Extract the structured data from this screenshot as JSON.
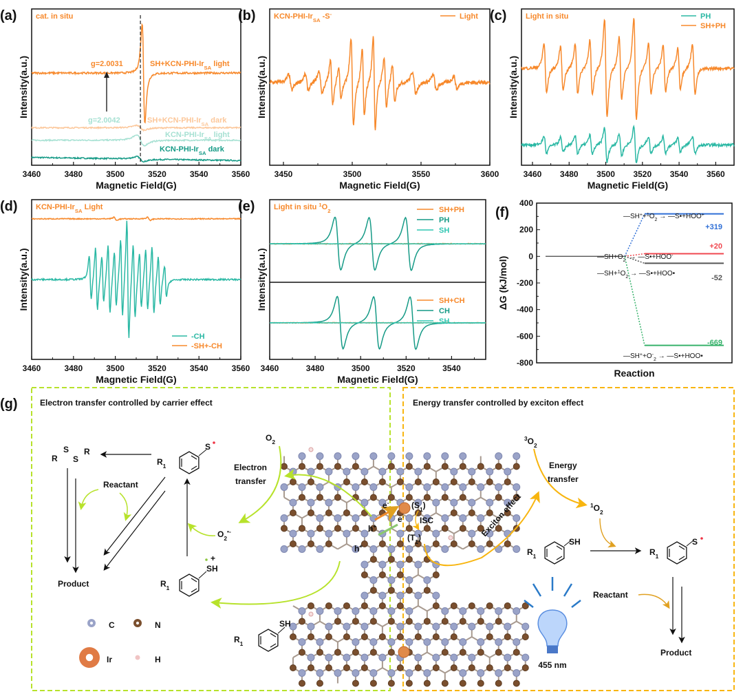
{
  "colors": {
    "orange": "#f7882a",
    "light_orange": "#fcc79a",
    "teal": "#2ab8a4",
    "dark_teal": "#159a86",
    "light_teal": "#a7e1d3",
    "blue": "#2f6fd6",
    "red": "#f0474f",
    "grey": "#555555",
    "green": "#37b26b",
    "lime": "#b7e22b",
    "gold": "#f8b50f",
    "bulb_blue": "#3a78d4"
  },
  "chart_data": [
    {
      "id": "a",
      "panel_label": "(a)",
      "type": "line",
      "title": "cat. in situ",
      "xlabel": "Magnetic Field(G)",
      "ylabel": "Intensity(a.u.)",
      "xlim": [
        3460,
        3560
      ],
      "xticks": [
        3460,
        3480,
        3500,
        3520,
        3540,
        3560
      ],
      "reference_line": 3512,
      "annotations": {
        "g_light": "g=2.0031",
        "g_dark": "g=2.0042"
      },
      "series": [
        {
          "name": {
            "main": "SH+KCN-PHI-Ir",
            "sub": "SA",
            "tail": " light"
          },
          "color": "#f7882a",
          "offset": 5.9,
          "lines": [
            {
              "center": 3513.5,
              "width": 1.1,
              "amp": 3.2
            }
          ]
        },
        {
          "name": {
            "main": "SH+KCN-PHI-Ir",
            "sub": "SA",
            "tail": " dark"
          },
          "color": "#fcc79a",
          "offset": 2.4,
          "lines": [
            {
              "center": 3512,
              "width": 3,
              "amp": 0.15
            }
          ]
        },
        {
          "name": {
            "main": "KCN-PHI-Ir",
            "sub": "SA",
            "tail": " light"
          },
          "color": "#a7e1d3",
          "offset": 1.6,
          "lines": [
            {
              "center": 3512,
              "width": 3,
              "amp": 0.35
            }
          ]
        },
        {
          "name": {
            "main": "KCN-PHI-Ir",
            "sub": "SA",
            "tail": " dark"
          },
          "color": "#159a86",
          "offset": 0.5,
          "lines": [
            {
              "center": 3512,
              "width": 3,
              "amp": 0.15
            }
          ]
        }
      ]
    },
    {
      "id": "b",
      "panel_label": "(b)",
      "type": "line",
      "title": {
        "main": "KCN-PHI-Ir",
        "sub": "SA",
        "tail": "  -S",
        "sup": "-"
      },
      "xlabel": "Magnetic Field(G)",
      "ylabel": "Intensity(a.u.)",
      "xlim": [
        3440,
        3600
      ],
      "xticks": [
        3450,
        3500,
        3550,
        3600
      ],
      "legend": "top-right",
      "series": [
        {
          "name": "Light",
          "color": "#f7882a",
          "offset": 5.3,
          "lines": [
            {
              "center": 3455,
              "width": 2,
              "amp": 0.5
            },
            {
              "center": 3467,
              "width": 2,
              "amp": 0.5
            },
            {
              "center": 3477,
              "width": 2,
              "amp": 0.7
            },
            {
              "center": 3485,
              "width": 1.5,
              "amp": 1.4
            },
            {
              "center": 3491,
              "width": 1.5,
              "amp": 1.0
            },
            {
              "center": 3500,
              "width": 1.5,
              "amp": 2.8
            },
            {
              "center": 3508,
              "width": 1.3,
              "amp": 2.2
            },
            {
              "center": 3516,
              "width": 1.3,
              "amp": 3.0
            },
            {
              "center": 3524,
              "width": 1.5,
              "amp": 1.6
            },
            {
              "center": 3530,
              "width": 1.5,
              "amp": 1.2
            },
            {
              "center": 3545,
              "width": 2,
              "amp": 0.7
            },
            {
              "center": 3560,
              "width": 2,
              "amp": 0.5
            },
            {
              "center": 3575,
              "width": 2,
              "amp": 0.4
            }
          ]
        }
      ]
    },
    {
      "id": "c",
      "panel_label": "(c)",
      "type": "line",
      "title": "Light in situ",
      "xlabel": "Magnetic Field(G)",
      "ylabel": "Intensity(a.u.)",
      "xlim": [
        3454,
        3570
      ],
      "xticks": [
        3460,
        3480,
        3500,
        3520,
        3540,
        3560
      ],
      "legend": "top-right",
      "series": [
        {
          "name": "PH",
          "color": "#2ab8a4",
          "offset": 1.3,
          "scale": 0.35
        },
        {
          "name": "SH+PH",
          "color": "#f7882a",
          "offset": 6.2,
          "scale": 1
        }
      ],
      "lines": [
        {
          "center": 3467,
          "width": 1.2,
          "amp": 1.6
        },
        {
          "center": 3476,
          "width": 1.2,
          "amp": 1.4
        },
        {
          "center": 3484,
          "width": 1.2,
          "amp": 1.6
        },
        {
          "center": 3492,
          "width": 1.2,
          "amp": 1.8
        },
        {
          "center": 3500,
          "width": 1.2,
          "amp": 3.2
        },
        {
          "center": 3508,
          "width": 1.2,
          "amp": 2.0
        },
        {
          "center": 3516,
          "width": 1.2,
          "amp": 3.3
        },
        {
          "center": 3524,
          "width": 1.2,
          "amp": 1.6
        },
        {
          "center": 3532,
          "width": 1.2,
          "amp": 1.5
        },
        {
          "center": 3540,
          "width": 1.2,
          "amp": 1.3
        },
        {
          "center": 3548,
          "width": 1.2,
          "amp": 1.6
        }
      ]
    },
    {
      "id": "d",
      "panel_label": "(d)",
      "type": "line",
      "title": {
        "main": "KCN-PHI-Ir",
        "sub": "SA",
        "tail": "  Light"
      },
      "xlabel": "Magnetic Field(G)",
      "ylabel": "Intensity(a.u.)",
      "xlim": [
        3460,
        3560
      ],
      "xticks": [
        3460,
        3480,
        3500,
        3520,
        3540,
        3560
      ],
      "legend": "bottom-right",
      "series": [
        {
          "name": "-CH",
          "color": "#2ab8a4",
          "offset": 5.0,
          "lines": [
            {
              "center": 3488,
              "width": 0.8,
              "amp": 1.4
            },
            {
              "center": 3491,
              "width": 0.8,
              "amp": 2.0
            },
            {
              "center": 3494,
              "width": 0.8,
              "amp": 1.5
            },
            {
              "center": 3497,
              "width": 0.8,
              "amp": 2.2
            },
            {
              "center": 3500,
              "width": 0.8,
              "amp": 1.8
            },
            {
              "center": 3503,
              "width": 0.8,
              "amp": 2.5
            },
            {
              "center": 3506,
              "width": 0.8,
              "amp": 3.8
            },
            {
              "center": 3509,
              "width": 0.8,
              "amp": 2.4
            },
            {
              "center": 3512,
              "width": 0.8,
              "amp": 1.8
            },
            {
              "center": 3515,
              "width": 0.8,
              "amp": 2.0
            },
            {
              "center": 3518,
              "width": 0.8,
              "amp": 2.2
            },
            {
              "center": 3521,
              "width": 0.8,
              "amp": 1.6
            },
            {
              "center": 3524,
              "width": 0.8,
              "amp": 1.0
            }
          ]
        },
        {
          "name": "-SH+-CH",
          "color": "#f7882a",
          "offset": 8.8,
          "lines": [
            {
              "center": 3500,
              "width": 1,
              "amp": 0.1
            },
            {
              "center": 3516,
              "width": 1,
              "amp": 0.1
            }
          ]
        }
      ]
    },
    {
      "id": "e",
      "panel_label": "(e)",
      "type": "line",
      "title": {
        "main": "Light  in situ ",
        "sup": "1",
        "tail": "O",
        "sub": "2"
      },
      "xlabel": "Magnetic Field(G)",
      "ylabel": "Intensity(a.u.)",
      "xlim": [
        3460,
        3555
      ],
      "xticks": [
        3460,
        3480,
        3500,
        3520,
        3540
      ],
      "legend": "top-right",
      "subplots": [
        {
          "series": [
            {
              "name": "SH+PH",
              "color": "#f7882a",
              "offset": 2.33,
              "lines": []
            },
            {
              "name": "PH",
              "color": "#159a86",
              "offset": 2.33,
              "lines": [
                {
                  "center": 3490,
                  "width": 2.2,
                  "amp": 1.6
                },
                {
                  "center": 3505,
                  "width": 2.2,
                  "amp": 1.6
                },
                {
                  "center": 3521,
                  "width": 2.2,
                  "amp": 1.6
                }
              ]
            },
            {
              "name": "SH",
              "color": "#2fc6b2",
              "offset": 2.33,
              "lines": []
            }
          ]
        },
        {
          "series": [
            {
              "name": "SH+CH",
              "color": "#f7882a",
              "offset": 2.37,
              "lines": []
            },
            {
              "name": "CH",
              "color": "#159a86",
              "offset": 2.37,
              "lines": [
                {
                  "center": 3491,
                  "width": 2.2,
                  "amp": 1.7
                },
                {
                  "center": 3507,
                  "width": 2.2,
                  "amp": 1.7
                },
                {
                  "center": 3523,
                  "width": 2.2,
                  "amp": 1.7
                }
              ]
            },
            {
              "name": "SH",
              "color": "#2fc6b2",
              "offset": 2.37,
              "lines": []
            }
          ]
        }
      ]
    },
    {
      "id": "f",
      "panel_label": "(f)",
      "type": "energy-level",
      "xlabel": "Reaction",
      "ylabel": "ΔG (kJ/mol)",
      "ylim": [
        -800,
        400
      ],
      "yticks": [
        400,
        200,
        0,
        -200,
        -400,
        -600,
        -800
      ],
      "start": 0,
      "levels": [
        {
          "value": 319,
          "label": "+319",
          "color": "#2f6fd6",
          "reaction": {
            "a": "—SH",
            "a_sup": "+",
            "b": "+",
            "b_sup": "1",
            "c": "O",
            "c_sub": "2",
            "d": " → —S•+HOO",
            "d_sup": "+"
          }
        },
        {
          "value": 20,
          "label": "+20",
          "color": "#f0474f",
          "reaction": {
            "a": "—SH+O",
            "a_sub": "2",
            "a_sup": "-",
            "d": " → —S•+HOO",
            "d_sup": "-"
          }
        },
        {
          "value": -52,
          "label": "-52",
          "color": "#555555",
          "reaction": {
            "a": "—SH+",
            "b_sup": "1",
            "c": "O",
            "c_sub": "2",
            "d": " → —S•+HOO•"
          }
        },
        {
          "value": -669,
          "label": "-669",
          "color": "#37b26b",
          "reaction": {
            "a": "—SH",
            "a_sup": "+",
            "b": "+O",
            "b_sub": "2",
            "b_sup": "-",
            "d": " → —S•+HOO•"
          }
        }
      ]
    }
  ],
  "scheme": {
    "panel_label": "(g)",
    "left_title": "Electron transfer controlled by carrier effect",
    "right_title": "Energy transfer controlled by exciton effect",
    "disulfide": {
      "r": "R",
      "s": "S"
    },
    "r1": "R",
    "r1_sub": "1",
    "s_radical": "S",
    "sh": "SH",
    "sh_cation_sup": "+",
    "reactant": "Reactant",
    "product": "Product",
    "o2": "O",
    "o2_sub": "2",
    "superoxide_sup": "•-",
    "electron_transfer": [
      "Electron",
      "transfer"
    ],
    "energy_transfer": [
      "Energy",
      "transfer"
    ],
    "triplet_o2_sup": "3",
    "singlet_o2_sup": "1",
    "exciton_effect": "Exciton effect",
    "e_minus": "e",
    "minus": "-",
    "h_plus": "h",
    "plus": "+",
    "s1": "(S",
    "s1_sub": "1",
    "t1": "(T",
    "close": ")",
    "isc": "ISC",
    "wavelength": "455 nm",
    "legend": [
      {
        "symbol": "C",
        "color": "#9aa3c8"
      },
      {
        "symbol": "N",
        "color": "#7a4f2e"
      },
      {
        "symbol": "Ir",
        "color": "#e07b45"
      },
      {
        "symbol": "H",
        "color": "#f0c4c4"
      }
    ]
  }
}
